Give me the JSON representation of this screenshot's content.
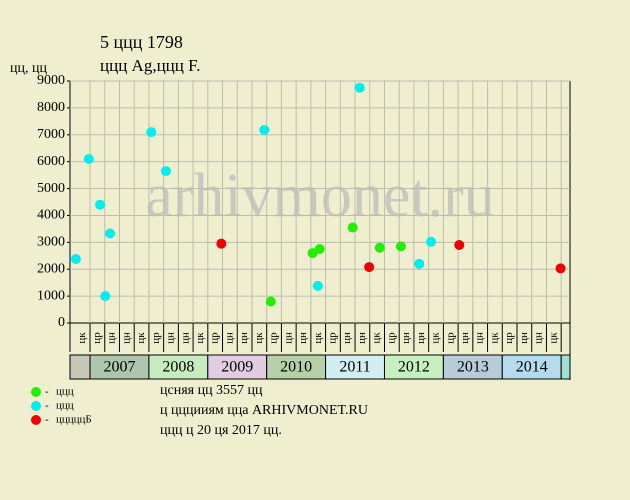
{
  "chart_data": {
    "type": "scatter",
    "title": "5 ццц 1798",
    "subtitle": "ццц Ag,ццц F.",
    "y_label": "цц, цц",
    "watermark": "arhivmonet.ru",
    "ylim": [
      0,
      9000
    ],
    "yticks": [
      0,
      1000,
      2000,
      3000,
      4000,
      5000,
      6000,
      7000,
      8000,
      9000
    ],
    "xlim": [
      2006.66,
      2015.15
    ],
    "years": [
      2007,
      2008,
      2009,
      2010,
      2011,
      2012,
      2013,
      2014
    ],
    "year_colors": [
      "#aec6ae",
      "#c6ecc0",
      "#e2cce2",
      "#b6d0a8",
      "#d2eef2",
      "#c6f0c0",
      "#b8ccd8",
      "#b4dcec"
    ],
    "periods": [
      "цк",
      "цр",
      "цн",
      "цн",
      "цк",
      "цр",
      "цн",
      "цн",
      "цк",
      "цр",
      "цн",
      "цн",
      "цк",
      "цр",
      "цн",
      "цн",
      "цк",
      "цр",
      "цн",
      "цн",
      "цк",
      "цр",
      "цн",
      "цн",
      "цк",
      "цр",
      "цн",
      "цн",
      "цк",
      "цр",
      "цн",
      "цн",
      "цк"
    ],
    "grid": true,
    "series": [
      {
        "name": "ццц",
        "color": "#22ee00",
        "x": [
          2010.07,
          2010.78,
          2010.9,
          2011.46,
          2011.92,
          2012.28
        ],
        "values": [
          800,
          2600,
          2750,
          3550,
          2800,
          2850
        ]
      },
      {
        "name": "ццц",
        "color": "#00eeee",
        "x": [
          2006.76,
          2006.98,
          2007.17,
          2007.26,
          2007.34,
          2008.04,
          2008.29,
          2009.96,
          2010.87,
          2011.58,
          2012.59,
          2012.79
        ],
        "values": [
          2380,
          6100,
          4400,
          1000,
          3330,
          7100,
          5650,
          7180,
          1380,
          8750,
          2200,
          3020
        ]
      },
      {
        "name": "цццццБ",
        "color": "#ee0000",
        "x": [
          2009.23,
          2011.74,
          2013.27,
          2014.99
        ],
        "values": [
          2950,
          2080,
          2900,
          2030
        ]
      }
    ],
    "legend_prefix": "-",
    "notes": [
      "цcняя цц 3557 цц",
      "ц цццииям цца ARHIVMONET.RU",
      "ццц ц 20 ця 2017 цц."
    ]
  }
}
